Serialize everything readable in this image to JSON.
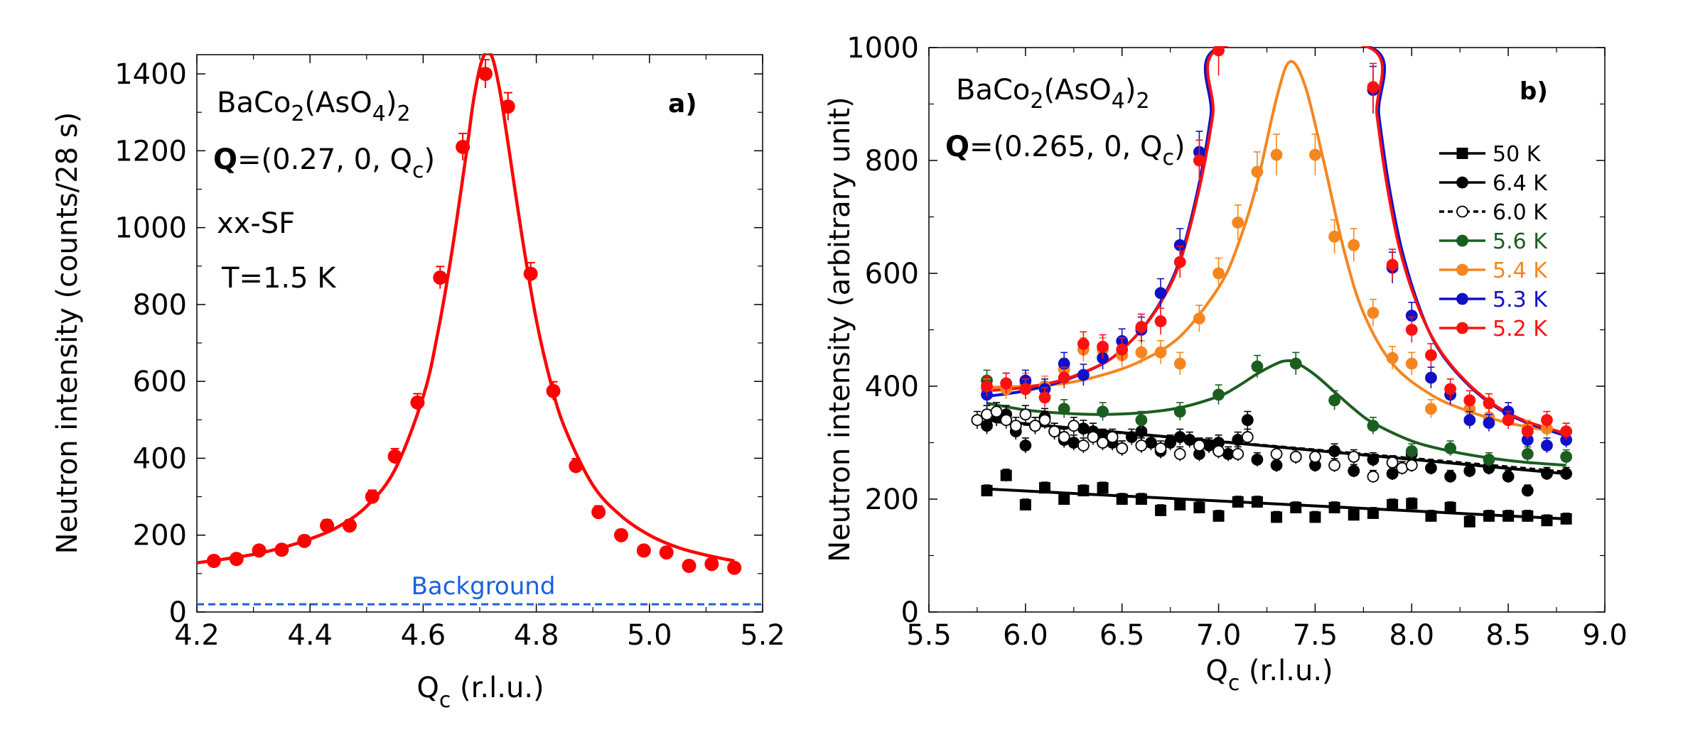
{
  "chart_data": [
    {
      "type": "scatter",
      "panel_label": "a)",
      "annotations": {
        "compound": "BaCo2(AsO4)2",
        "q_vector": "Q=(0.27, 0, Qc)",
        "mode": "xx-SF",
        "temperature": "T=1.5 K"
      },
      "xlabel": "Qc (r.l.u.)",
      "ylabel": "Neutron intensity (counts/28 s)",
      "xlim": [
        4.2,
        5.2
      ],
      "ylim": [
        0,
        1450
      ],
      "xticks": [
        "4.2",
        "4.4",
        "4.6",
        "4.8",
        "5.0",
        "5.2"
      ],
      "yticks": [
        "0",
        "200",
        "400",
        "600",
        "800",
        "1000",
        "1200",
        "1400"
      ],
      "series": [
        {
          "name": "data",
          "color": "#ff0000",
          "x": [
            4.23,
            4.27,
            4.31,
            4.35,
            4.39,
            4.43,
            4.47,
            4.51,
            4.55,
            4.59,
            4.63,
            4.67,
            4.71,
            4.75,
            4.79,
            4.83,
            4.87,
            4.91,
            4.95,
            4.99,
            5.03,
            5.07,
            5.11,
            5.15
          ],
          "y": [
            133,
            138,
            160,
            162,
            185,
            225,
            225,
            300,
            405,
            545,
            870,
            1210,
            1400,
            1315,
            880,
            575,
            380,
            260,
            200,
            160,
            155,
            120,
            125,
            115
          ],
          "err": [
            12,
            12,
            13,
            13,
            14,
            15,
            15,
            17,
            20,
            23,
            29,
            35,
            37,
            36,
            29,
            24,
            19,
            16,
            14,
            13,
            12,
            11,
            11,
            11
          ]
        }
      ],
      "fit": {
        "name": "fit",
        "color": "#ff0000",
        "x": [
          4.2,
          4.25,
          4.3,
          4.35,
          4.4,
          4.45,
          4.5,
          4.55,
          4.6,
          4.625,
          4.65,
          4.675,
          4.69,
          4.705,
          4.72,
          4.735,
          4.75,
          4.775,
          4.8,
          4.825,
          4.85,
          4.9,
          4.95,
          5.0,
          5.05,
          5.1,
          5.15
        ],
        "y": [
          128,
          138,
          150,
          167,
          190,
          222,
          275,
          370,
          560,
          720,
          930,
          1180,
          1340,
          1440,
          1450,
          1360,
          1220,
          975,
          760,
          600,
          480,
          330,
          250,
          200,
          168,
          148,
          133
        ]
      },
      "background": {
        "label": "Background",
        "value": 20,
        "color": "#1a5fe0"
      }
    },
    {
      "type": "scatter",
      "panel_label": "b)",
      "annotations": {
        "compound": "BaCo2(AsO4)2",
        "q_vector": "Q=(0.265, 0, Qc)"
      },
      "xlabel": "Qc (r.l.u.)",
      "ylabel": "Neutron intensity (arbitrary unit)",
      "xlim": [
        5.5,
        9.0
      ],
      "ylim": [
        0,
        1000
      ],
      "xticks": [
        "5.5",
        "6.0",
        "6.5",
        "7.0",
        "7.5",
        "8.0",
        "8.5",
        "9.0"
      ],
      "yticks": [
        "0",
        "200",
        "400",
        "600",
        "800",
        "1000"
      ],
      "series": [
        {
          "name": "50 K",
          "color": "#000000",
          "marker": "square",
          "filled": true,
          "dashed": false,
          "x": [
            5.8,
            5.9,
            6.0,
            6.1,
            6.2,
            6.3,
            6.4,
            6.5,
            6.6,
            6.7,
            6.8,
            6.9,
            7.0,
            7.1,
            7.2,
            7.3,
            7.4,
            7.5,
            7.6,
            7.7,
            7.8,
            7.9,
            8.0,
            8.1,
            8.2,
            8.3,
            8.4,
            8.5,
            8.6,
            8.7,
            8.8
          ],
          "y": [
            215,
            242,
            190,
            220,
            200,
            215,
            220,
            200,
            200,
            180,
            190,
            185,
            170,
            195,
            195,
            168,
            185,
            168,
            185,
            172,
            175,
            190,
            192,
            170,
            185,
            160,
            170,
            170,
            170,
            162,
            165
          ],
          "fit": [
            [
              5.8,
              218
            ],
            [
              8.8,
              165
            ]
          ]
        },
        {
          "name": "6.4 K",
          "color": "#000000",
          "marker": "circle",
          "filled": true,
          "dashed": false,
          "x": [
            5.8,
            5.85,
            5.9,
            5.95,
            6.0,
            6.05,
            6.1,
            6.15,
            6.2,
            6.25,
            6.3,
            6.35,
            6.4,
            6.45,
            6.5,
            6.55,
            6.6,
            6.65,
            6.7,
            6.75,
            6.8,
            6.85,
            6.9,
            6.95,
            7.0,
            7.05,
            7.1,
            7.15,
            7.2,
            7.3,
            7.4,
            7.5,
            7.6,
            7.7,
            7.8,
            7.9,
            8.0,
            8.1,
            8.2,
            8.3,
            8.4,
            8.5,
            8.6,
            8.7,
            8.8
          ],
          "y": [
            330,
            345,
            350,
            320,
            295,
            330,
            345,
            320,
            305,
            300,
            325,
            320,
            310,
            300,
            290,
            310,
            320,
            300,
            285,
            300,
            310,
            305,
            280,
            295,
            300,
            280,
            305,
            340,
            270,
            260,
            275,
            260,
            285,
            250,
            270,
            245,
            280,
            255,
            240,
            250,
            255,
            240,
            215,
            245,
            245
          ],
          "fit": [
            [
              5.8,
              340
            ],
            [
              8.8,
              245
            ]
          ]
        },
        {
          "name": "6.0 K",
          "color": "#000000",
          "marker": "circle",
          "filled": false,
          "dashed": true,
          "x": [
            5.75,
            5.8,
            5.85,
            5.9,
            5.95,
            6.0,
            6.05,
            6.1,
            6.15,
            6.2,
            6.25,
            6.3,
            6.35,
            6.4,
            6.45,
            6.5,
            6.6,
            6.7,
            6.8,
            6.9,
            7.0,
            7.1,
            7.15,
            7.3,
            7.4,
            7.5,
            7.6,
            7.7,
            7.8,
            7.9,
            7.95,
            8.0
          ],
          "y": [
            340,
            350,
            355,
            340,
            330,
            350,
            330,
            340,
            320,
            310,
            330,
            295,
            310,
            300,
            310,
            290,
            295,
            290,
            280,
            295,
            285,
            280,
            310,
            280,
            275,
            275,
            260,
            275,
            240,
            265,
            255,
            260
          ],
          "fit": [
            [
              5.75,
              340
            ],
            [
              8.8,
              248
            ]
          ]
        },
        {
          "name": "5.6 K",
          "color": "#1b5e20",
          "marker": "circle",
          "filled": true,
          "dashed": false,
          "x": [
            5.8,
            6.0,
            6.2,
            6.4,
            6.6,
            6.8,
            7.0,
            7.2,
            7.4,
            7.6,
            7.8,
            8.0,
            8.2,
            8.4,
            8.6,
            8.8
          ],
          "y": [
            410,
            395,
            360,
            355,
            340,
            355,
            385,
            435,
            440,
            375,
            330,
            285,
            290,
            270,
            280,
            275
          ],
          "fit": [
            [
              5.8,
              370
            ],
            [
              6.0,
              358
            ],
            [
              6.2,
              352
            ],
            [
              6.4,
              350
            ],
            [
              6.6,
              353
            ],
            [
              6.8,
              362
            ],
            [
              7.0,
              382
            ],
            [
              7.1,
              400
            ],
            [
              7.2,
              422
            ],
            [
              7.3,
              440
            ],
            [
              7.35,
              445
            ],
            [
              7.4,
              442
            ],
            [
              7.5,
              420
            ],
            [
              7.6,
              390
            ],
            [
              7.7,
              360
            ],
            [
              7.8,
              335
            ],
            [
              8.0,
              303
            ],
            [
              8.2,
              285
            ],
            [
              8.4,
              273
            ],
            [
              8.6,
              265
            ],
            [
              8.8,
              260
            ]
          ]
        },
        {
          "name": "5.4 K",
          "color": "#f5861f",
          "marker": "circle",
          "filled": true,
          "dashed": false,
          "x": [
            5.8,
            5.9,
            6.0,
            6.1,
            6.2,
            6.3,
            6.4,
            6.5,
            6.6,
            6.7,
            6.8,
            6.9,
            7.0,
            7.1,
            7.2,
            7.3,
            7.5,
            7.6,
            7.7,
            7.8,
            7.9,
            8.0,
            8.1,
            8.2,
            8.3,
            8.4,
            8.5,
            8.6,
            8.7,
            8.8
          ],
          "y": [
            395,
            395,
            405,
            400,
            430,
            465,
            465,
            455,
            460,
            460,
            440,
            520,
            600,
            690,
            780,
            810,
            810,
            665,
            650,
            530,
            450,
            440,
            360,
            385,
            360,
            345,
            340,
            325,
            325,
            320
          ],
          "fit": [
            [
              5.8,
              398
            ],
            [
              6.0,
              400
            ],
            [
              6.2,
              405
            ],
            [
              6.4,
              420
            ],
            [
              6.6,
              445
            ],
            [
              6.8,
              488
            ],
            [
              7.0,
              575
            ],
            [
              7.1,
              650
            ],
            [
              7.2,
              760
            ],
            [
              7.3,
              910
            ],
            [
              7.37,
              975
            ],
            [
              7.45,
              930
            ],
            [
              7.55,
              790
            ],
            [
              7.65,
              640
            ],
            [
              7.75,
              530
            ],
            [
              7.9,
              440
            ],
            [
              8.1,
              385
            ],
            [
              8.3,
              355
            ],
            [
              8.5,
              335
            ],
            [
              8.7,
              322
            ],
            [
              8.8,
              318
            ]
          ]
        },
        {
          "name": "5.3 K",
          "color": "#1010c8",
          "marker": "circle",
          "filled": true,
          "dashed": false,
          "x": [
            5.8,
            5.9,
            6.0,
            6.1,
            6.2,
            6.3,
            6.4,
            6.5,
            6.6,
            6.7,
            6.8,
            6.9,
            7.8,
            7.9,
            8.0,
            8.1,
            8.2,
            8.3,
            8.4,
            8.5,
            8.6,
            8.7,
            8.8
          ],
          "y": [
            385,
            405,
            410,
            395,
            440,
            420,
            450,
            480,
            500,
            565,
            650,
            815,
            925,
            610,
            525,
            415,
            385,
            340,
            335,
            355,
            305,
            295,
            305
          ],
          "fit": [
            [
              5.8,
              382
            ],
            [
              6.0,
              392
            ],
            [
              6.2,
              410
            ],
            [
              6.4,
              440
            ],
            [
              6.5,
              465
            ],
            [
              6.6,
              500
            ],
            [
              6.7,
              550
            ],
            [
              6.8,
              625
            ],
            [
              6.9,
              760
            ],
            [
              6.96,
              880
            ],
            [
              7.0,
              1000
            ],
            [
              7.79,
              1000
            ],
            [
              7.83,
              880
            ],
            [
              7.88,
              760
            ],
            [
              7.95,
              640
            ],
            [
              8.05,
              530
            ],
            [
              8.15,
              460
            ],
            [
              8.3,
              400
            ],
            [
              8.45,
              360
            ],
            [
              8.6,
              335
            ],
            [
              8.8,
              312
            ]
          ]
        },
        {
          "name": "5.2 K",
          "color": "#ff1010",
          "marker": "circle",
          "filled": true,
          "dashed": false,
          "x": [
            5.8,
            5.9,
            6.0,
            6.1,
            6.2,
            6.3,
            6.4,
            6.5,
            6.6,
            6.7,
            6.8,
            6.9,
            7.0,
            7.8,
            7.9,
            8.0,
            8.1,
            8.2,
            8.3,
            8.4,
            8.5,
            8.6,
            8.7,
            8.8
          ],
          "y": [
            400,
            405,
            395,
            380,
            415,
            475,
            470,
            465,
            505,
            515,
            620,
            800,
            995,
            930,
            615,
            500,
            455,
            395,
            375,
            370,
            340,
            320,
            340,
            320
          ],
          "fit": [
            [
              5.8,
              392
            ],
            [
              6.0,
              398
            ],
            [
              6.2,
              412
            ],
            [
              6.4,
              440
            ],
            [
              6.5,
              465
            ],
            [
              6.6,
              500
            ],
            [
              6.7,
              548
            ],
            [
              6.8,
              620
            ],
            [
              6.9,
              750
            ],
            [
              6.97,
              880
            ],
            [
              7.01,
              1000
            ],
            [
              7.78,
              1000
            ],
            [
              7.82,
              880
            ],
            [
              7.87,
              760
            ],
            [
              7.94,
              640
            ],
            [
              8.04,
              535
            ],
            [
              8.15,
              462
            ],
            [
              8.3,
              402
            ],
            [
              8.45,
              362
            ],
            [
              8.6,
              337
            ],
            [
              8.8,
              316
            ]
          ]
        }
      ]
    }
  ]
}
